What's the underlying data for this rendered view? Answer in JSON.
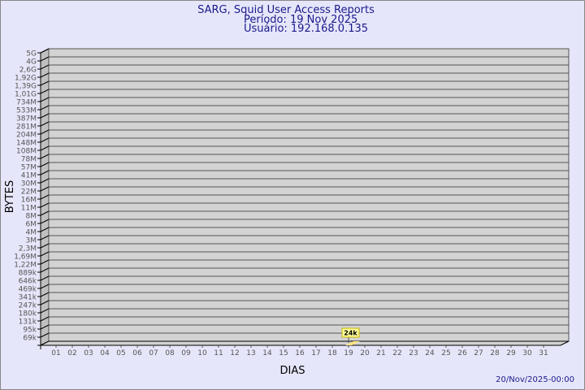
{
  "header": {
    "title": "SARG, Squid User Access Reports",
    "period": "Período: 19 Nov 2025",
    "user": "Usuário: 192.168.0.135"
  },
  "footer": {
    "timestamp": "20/Nov/2025-00:00"
  },
  "colors": {
    "background": "#e6e6fa",
    "title": "#1a1a8c",
    "plot_wall": "#d3d3d3",
    "plot_side": "#c0c0c0",
    "grid": "#555555",
    "tick_label": "#555555",
    "bar": "#ffe680",
    "label_box": "#ffff99",
    "label_border": "#c8b400"
  },
  "chart_data": {
    "type": "bar",
    "xlabel": "DIAS",
    "ylabel": "BYTES",
    "y_scale": "log",
    "grid": true,
    "categories": [
      "01",
      "02",
      "03",
      "04",
      "05",
      "06",
      "07",
      "08",
      "09",
      "10",
      "11",
      "12",
      "13",
      "14",
      "15",
      "16",
      "17",
      "18",
      "19",
      "20",
      "21",
      "22",
      "23",
      "24",
      "25",
      "26",
      "27",
      "28",
      "29",
      "30",
      "31"
    ],
    "y_tick_labels": [
      "5G",
      "4G",
      "2,6G",
      "1,92G",
      "1,39G",
      "1,01G",
      "734M",
      "533M",
      "387M",
      "281M",
      "204M",
      "148M",
      "108M",
      "78M",
      "57M",
      "41M",
      "30M",
      "22M",
      "16M",
      "11M",
      "8M",
      "6M",
      "4M",
      "3M",
      "2,3M",
      "1,69M",
      "1,22M",
      "889k",
      "646k",
      "469k",
      "341k",
      "247k",
      "180k",
      "131k",
      "95k",
      "69k"
    ],
    "series": [
      {
        "values": [
          {
            "day": "19",
            "bytes": 24000,
            "label": "24k"
          }
        ]
      }
    ]
  }
}
